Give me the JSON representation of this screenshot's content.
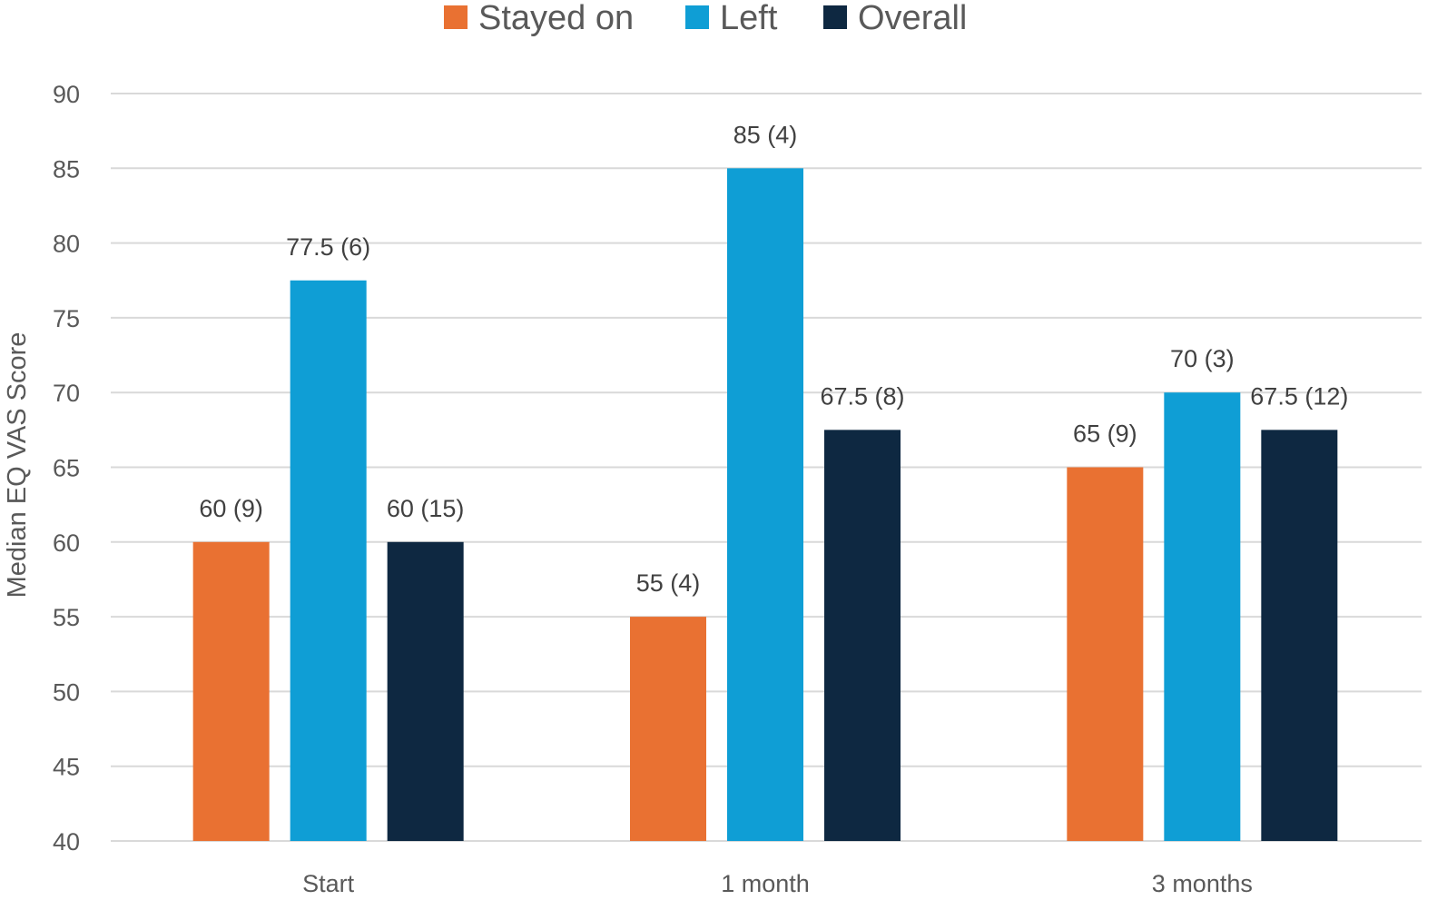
{
  "chart_data": {
    "type": "bar",
    "title": "",
    "xlabel": "",
    "ylabel": "Median EQ VAS Score",
    "ylim": [
      40,
      90
    ],
    "yticks": [
      40,
      45,
      50,
      55,
      60,
      65,
      70,
      75,
      80,
      85,
      90
    ],
    "grid": true,
    "legend_position": "top-center",
    "categories": [
      "Start",
      "1 month",
      "3 months"
    ],
    "series": [
      {
        "name": "Stayed on",
        "color": "#E97132",
        "values": [
          60,
          55,
          65
        ],
        "labels": [
          "60 (9)",
          "55 (4)",
          "65 (9)"
        ]
      },
      {
        "name": "Left",
        "color": "#0F9ED5",
        "values": [
          77.5,
          85,
          70
        ],
        "labels": [
          "77.5 (6)",
          "85 (4)",
          "70 (3)"
        ]
      },
      {
        "name": "Overall",
        "color": "#0E2841",
        "values": [
          60,
          67.5,
          67.5
        ],
        "labels": [
          "60 (15)",
          "67.5 (8)",
          "67.5 (12)"
        ]
      }
    ]
  }
}
